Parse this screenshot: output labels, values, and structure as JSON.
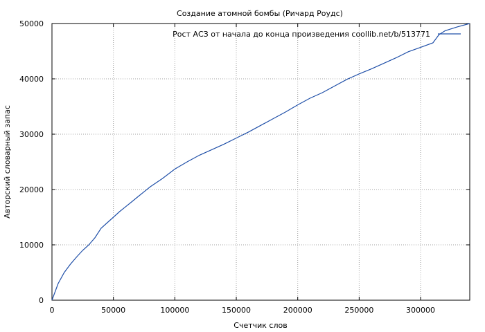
{
  "chart_data": {
    "type": "line",
    "title": "Создание атомной бомбы (Ричард Роудс)",
    "xlabel": "Счетчик слов",
    "ylabel": "Авторский словарный запас",
    "xlim": [
      0,
      340000
    ],
    "ylim": [
      0,
      50000
    ],
    "xticks": [
      0,
      50000,
      100000,
      150000,
      200000,
      250000,
      300000
    ],
    "yticks": [
      0,
      10000,
      20000,
      30000,
      40000,
      50000
    ],
    "grid": true,
    "legend_position": "top-right",
    "series": [
      {
        "name": "Рост АСЗ от начала до конца произведения  coollib.net/b/513771",
        "color": "#1f4fa8",
        "x": [
          0,
          5000,
          10000,
          15000,
          20000,
          25000,
          30000,
          35000,
          40000,
          45000,
          50000,
          55000,
          60000,
          65000,
          70000,
          75000,
          80000,
          90000,
          100000,
          110000,
          120000,
          130000,
          140000,
          150000,
          160000,
          170000,
          180000,
          190000,
          200000,
          210000,
          220000,
          230000,
          240000,
          250000,
          260000,
          270000,
          280000,
          290000,
          300000,
          310000,
          315000,
          320000,
          330000,
          340000
        ],
        "y": [
          0,
          3000,
          5000,
          6500,
          7800,
          9000,
          10000,
          11300,
          13000,
          14000,
          15000,
          16000,
          16900,
          17800,
          18700,
          19600,
          20500,
          22000,
          23700,
          25000,
          26200,
          27200,
          28200,
          29300,
          30400,
          31600,
          32800,
          34000,
          35300,
          36500,
          37500,
          38700,
          39900,
          40900,
          41800,
          42800,
          43800,
          44900,
          45700,
          46500,
          48000,
          48700,
          49400,
          50000
        ]
      }
    ]
  }
}
